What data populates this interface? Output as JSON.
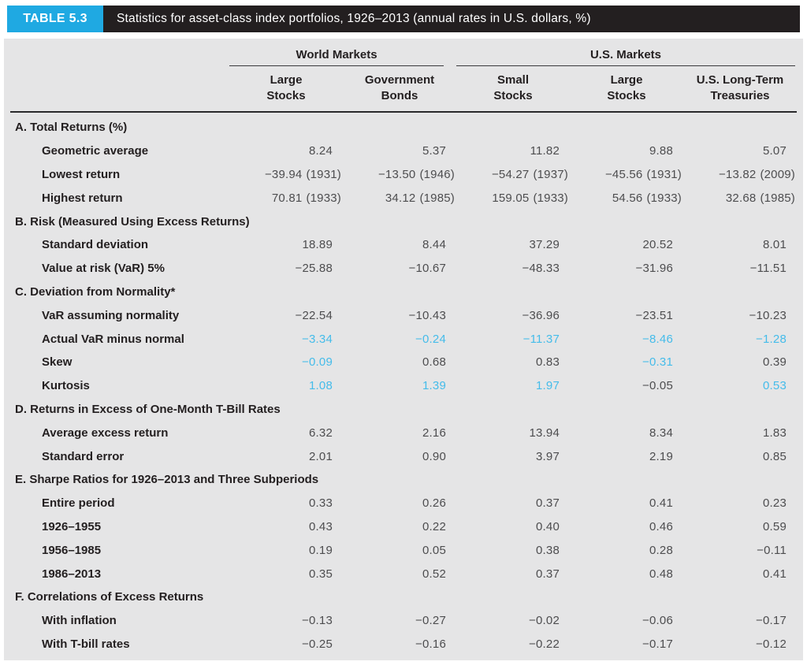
{
  "header": {
    "tag": "TABLE 5.3",
    "title": "Statistics for asset-class index portfolios, 1926–2013 (annual rates in U.S. dollars, %)"
  },
  "colors": {
    "badge_cyan": "#1fa9e2",
    "titlebar_black": "#231f20",
    "panel_gray": "#e5e5e6",
    "highlight_blue": "#45bcea",
    "number_gray": "#4d4d4f"
  },
  "column_groups": [
    {
      "label": "World Markets",
      "span": 2
    },
    {
      "label": "U.S. Markets",
      "span": 3
    }
  ],
  "columns": [
    "Large\nStocks",
    "Government\nBonds",
    "Small\nStocks",
    "Large\nStocks",
    "U.S. Long-Term\nTreasuries"
  ],
  "sections": [
    {
      "title": "A. Total Returns (%)",
      "rows": [
        {
          "label": "Geometric average",
          "cells": [
            {
              "v": "8.24"
            },
            {
              "v": "5.37"
            },
            {
              "v": "11.82"
            },
            {
              "v": "9.88"
            },
            {
              "v": "5.07"
            }
          ]
        },
        {
          "label": "Lowest return",
          "cells": [
            {
              "v": "−39.94",
              "year": "(1931)"
            },
            {
              "v": "−13.50",
              "year": "(1946)"
            },
            {
              "v": "−54.27",
              "year": "(1937)"
            },
            {
              "v": "−45.56",
              "year": "(1931)"
            },
            {
              "v": "−13.82",
              "year": "(2009)"
            }
          ]
        },
        {
          "label": "Highest return",
          "cells": [
            {
              "v": "70.81",
              "year": "(1933)"
            },
            {
              "v": "34.12",
              "year": "(1985)"
            },
            {
              "v": "159.05",
              "year": "(1933)"
            },
            {
              "v": "54.56",
              "year": "(1933)"
            },
            {
              "v": "32.68",
              "year": "(1985)"
            }
          ]
        }
      ]
    },
    {
      "title": "B. Risk (Measured Using Excess Returns)",
      "rows": [
        {
          "label": "Standard deviation",
          "cells": [
            {
              "v": "18.89"
            },
            {
              "v": "8.44"
            },
            {
              "v": "37.29"
            },
            {
              "v": "20.52"
            },
            {
              "v": "8.01"
            }
          ]
        },
        {
          "label": "Value at risk (VaR) 5%",
          "cells": [
            {
              "v": "−25.88"
            },
            {
              "v": "−10.67"
            },
            {
              "v": "−48.33"
            },
            {
              "v": "−31.96"
            },
            {
              "v": "−11.51"
            }
          ]
        }
      ]
    },
    {
      "title": "C. Deviation from Normality*",
      "rows": [
        {
          "label": "VaR assuming normality",
          "cells": [
            {
              "v": "−22.54"
            },
            {
              "v": "−10.43"
            },
            {
              "v": "−36.96"
            },
            {
              "v": "−23.51"
            },
            {
              "v": "−10.23"
            }
          ]
        },
        {
          "label": "Actual VaR minus normal",
          "cells": [
            {
              "v": "−3.34",
              "hl": true
            },
            {
              "v": "−0.24",
              "hl": true
            },
            {
              "v": "−11.37",
              "hl": true
            },
            {
              "v": "−8.46",
              "hl": true
            },
            {
              "v": "−1.28",
              "hl": true
            }
          ]
        },
        {
          "label": "Skew",
          "cells": [
            {
              "v": "−0.09",
              "hl": true
            },
            {
              "v": "0.68"
            },
            {
              "v": "0.83"
            },
            {
              "v": "−0.31",
              "hl": true
            },
            {
              "v": "0.39"
            }
          ]
        },
        {
          "label": "Kurtosis",
          "cells": [
            {
              "v": "1.08",
              "hl": true
            },
            {
              "v": "1.39",
              "hl": true
            },
            {
              "v": "1.97",
              "hl": true
            },
            {
              "v": "−0.05"
            },
            {
              "v": "0.53",
              "hl": true
            }
          ]
        }
      ]
    },
    {
      "title": "D. Returns in Excess of One-Month T-Bill Rates",
      "rows": [
        {
          "label": "Average excess return",
          "cells": [
            {
              "v": "6.32"
            },
            {
              "v": "2.16"
            },
            {
              "v": "13.94"
            },
            {
              "v": "8.34"
            },
            {
              "v": "1.83"
            }
          ]
        },
        {
          "label": "Standard error",
          "cells": [
            {
              "v": "2.01"
            },
            {
              "v": "0.90"
            },
            {
              "v": "3.97"
            },
            {
              "v": "2.19"
            },
            {
              "v": "0.85"
            }
          ]
        }
      ]
    },
    {
      "title": "E. Sharpe Ratios for 1926–2013 and Three Subperiods",
      "rows": [
        {
          "label": "Entire period",
          "cells": [
            {
              "v": "0.33"
            },
            {
              "v": "0.26"
            },
            {
              "v": "0.37"
            },
            {
              "v": "0.41"
            },
            {
              "v": "0.23"
            }
          ]
        },
        {
          "label": "1926–1955",
          "cells": [
            {
              "v": "0.43"
            },
            {
              "v": "0.22"
            },
            {
              "v": "0.40"
            },
            {
              "v": "0.46"
            },
            {
              "v": "0.59"
            }
          ]
        },
        {
          "label": "1956–1985",
          "cells": [
            {
              "v": "0.19"
            },
            {
              "v": "0.05"
            },
            {
              "v": "0.38"
            },
            {
              "v": "0.28"
            },
            {
              "v": "−0.11"
            }
          ]
        },
        {
          "label": "1986–2013",
          "cells": [
            {
              "v": "0.35"
            },
            {
              "v": "0.52"
            },
            {
              "v": "0.37"
            },
            {
              "v": "0.48"
            },
            {
              "v": "0.41"
            }
          ]
        }
      ]
    },
    {
      "title": "F. Correlations of Excess Returns",
      "rows": [
        {
          "label": "With inflation",
          "cells": [
            {
              "v": "−0.13"
            },
            {
              "v": "−0.27"
            },
            {
              "v": "−0.02"
            },
            {
              "v": "−0.06"
            },
            {
              "v": "−0.17"
            }
          ]
        },
        {
          "label": "With T-bill rates",
          "cells": [
            {
              "v": "−0.25"
            },
            {
              "v": "−0.16"
            },
            {
              "v": "−0.22"
            },
            {
              "v": "−0.17"
            },
            {
              "v": "−0.12"
            }
          ]
        }
      ]
    }
  ]
}
